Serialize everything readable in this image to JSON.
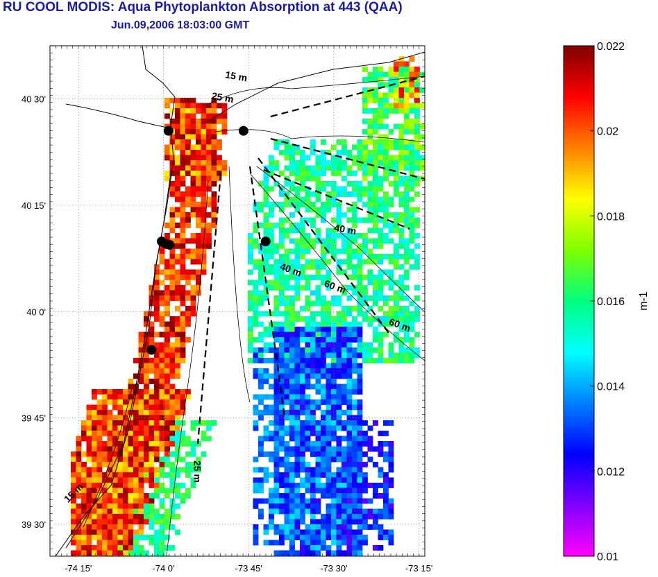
{
  "title": "RU COOL MODIS: Aqua Phytoplankton Absorption at 443 (QAA)",
  "subtitle": "Jun.09,2006 18:03:00 GMT",
  "map": {
    "lat_ticks": [
      "40 30'",
      "40 15'",
      "40 0'",
      "39 45'",
      "39 30'"
    ],
    "lon_ticks": [
      "-74 15'",
      "-74 0'",
      "-73 45'",
      "-73 30'",
      "-73 15'"
    ],
    "lon_range": [
      -74.333,
      -73.233
    ],
    "lat_range": [
      39.425,
      40.625
    ],
    "gridlines": true,
    "isobath_labels": [
      {
        "text": "15 m",
        "lon": -73.82,
        "lat": 40.55
      },
      {
        "text": "25 m",
        "lon": -73.86,
        "lat": 40.5
      },
      {
        "text": "40 m",
        "lon": -73.5,
        "lat": 40.19
      },
      {
        "text": "40 m",
        "lon": -73.66,
        "lat": 40.1
      },
      {
        "text": "60 m",
        "lon": -73.53,
        "lat": 40.06
      },
      {
        "text": "60 m",
        "lon": -73.34,
        "lat": 39.97
      },
      {
        "text": "25 m",
        "lon": -73.91,
        "lat": 39.65
      },
      {
        "text": "15 m",
        "lon": -74.28,
        "lat": 39.55
      }
    ],
    "stations": [
      {
        "lon": -73.985,
        "lat": 40.425
      },
      {
        "lon": -73.765,
        "lat": 40.425
      },
      {
        "lon": -74.005,
        "lat": 40.165
      },
      {
        "lon": -73.995,
        "lat": 40.16
      },
      {
        "lon": -73.982,
        "lat": 40.157
      },
      {
        "lon": -73.7,
        "lat": 40.165
      },
      {
        "lon": -74.035,
        "lat": 39.91
      }
    ]
  },
  "colorbar": {
    "label": "m-1",
    "min": 0.01,
    "max": 0.022,
    "ticks": [
      "0.022",
      "0.02",
      "0.018",
      "0.016",
      "0.014",
      "0.012",
      "0.01"
    ],
    "colors": [
      "#ff00ff",
      "#8000ff",
      "#0000ff",
      "#0080ff",
      "#00ffff",
      "#00ff80",
      "#80ff00",
      "#ffff00",
      "#ff8000",
      "#ff0000",
      "#800000"
    ]
  }
}
